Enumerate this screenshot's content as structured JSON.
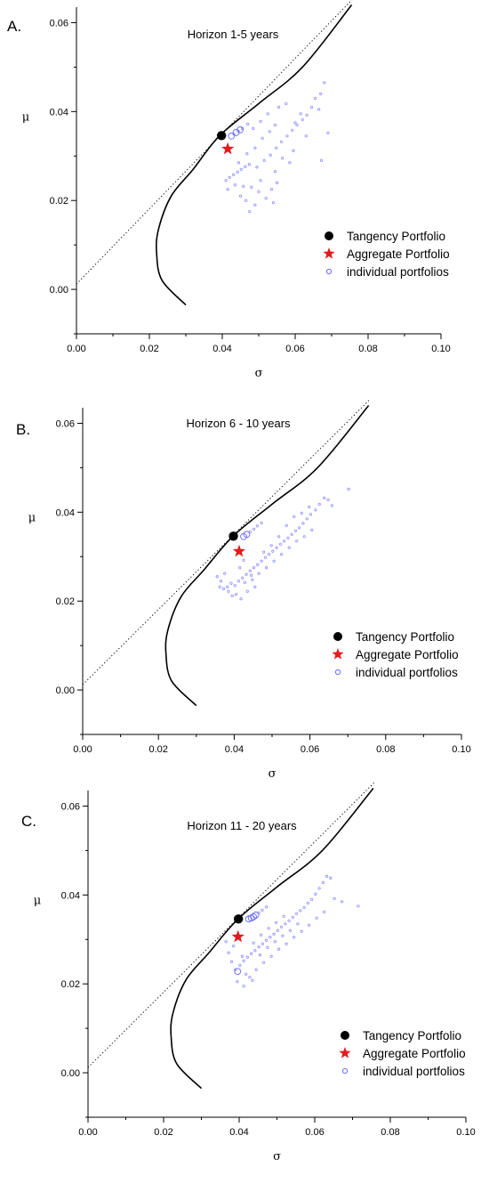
{
  "chart_data": [
    {
      "type": "scatter",
      "panel_label": "A.",
      "title": "Horizon 1-5 years",
      "xlabel": "σ",
      "ylabel": "μ",
      "xlim": [
        0.0,
        0.1
      ],
      "ylim": [
        -0.01,
        0.0635
      ],
      "xticks": [
        "0.00",
        "0.02",
        "0.04",
        "0.06",
        "0.08",
        "0.10"
      ],
      "yticks": [
        "0.00",
        "0.02",
        "0.04",
        "0.06"
      ],
      "legend_position": "right-middle",
      "legend": [
        "Tangency Portfolio",
        "Aggregate Portfolio",
        "individual portfolios"
      ],
      "frontier": {
        "type": "line",
        "style": "solid",
        "points": [
          [
            0.03,
            -0.0035
          ],
          [
            0.0235,
            0.002
          ],
          [
            0.022,
            0.008
          ],
          [
            0.0225,
            0.0135
          ],
          [
            0.026,
            0.021
          ],
          [
            0.032,
            0.027
          ],
          [
            0.0393,
            0.0346
          ],
          [
            0.05,
            0.0418
          ],
          [
            0.062,
            0.05
          ],
          [
            0.0755,
            0.064
          ]
        ]
      },
      "capital_market_line": {
        "type": "line",
        "style": "dotted",
        "points": [
          [
            0.0,
            0.0012
          ],
          [
            0.076,
            0.0655
          ]
        ]
      },
      "tangency_portfolio": {
        "x": 0.0398,
        "y": 0.0346,
        "color": "#000000"
      },
      "aggregate_portfolio": {
        "x": 0.0415,
        "y": 0.0316,
        "color": "#e41a1c"
      },
      "individual_portfolios_color": "#6b6bff",
      "individual_portfolios": [
        {
          "x": 0.0425,
          "y": 0.0345,
          "large": true
        },
        {
          "x": 0.0438,
          "y": 0.0353,
          "large": true
        },
        {
          "x": 0.0449,
          "y": 0.0359,
          "large": true
        },
        {
          "x": 0.0432,
          "y": 0.0349
        },
        {
          "x": 0.0444,
          "y": 0.0356
        },
        {
          "x": 0.0455,
          "y": 0.0362
        },
        {
          "x": 0.041,
          "y": 0.0245
        },
        {
          "x": 0.042,
          "y": 0.0252
        },
        {
          "x": 0.0431,
          "y": 0.0258
        },
        {
          "x": 0.0442,
          "y": 0.0264
        },
        {
          "x": 0.0452,
          "y": 0.027
        },
        {
          "x": 0.0463,
          "y": 0.0276
        },
        {
          "x": 0.0474,
          "y": 0.0281
        },
        {
          "x": 0.045,
          "y": 0.021
        },
        {
          "x": 0.0465,
          "y": 0.02
        },
        {
          "x": 0.048,
          "y": 0.023
        },
        {
          "x": 0.049,
          "y": 0.019
        },
        {
          "x": 0.05,
          "y": 0.022
        },
        {
          "x": 0.0475,
          "y": 0.0175
        },
        {
          "x": 0.052,
          "y": 0.0205
        },
        {
          "x": 0.0535,
          "y": 0.0225
        },
        {
          "x": 0.055,
          "y": 0.024
        },
        {
          "x": 0.0445,
          "y": 0.0285
        },
        {
          "x": 0.0468,
          "y": 0.0305
        },
        {
          "x": 0.049,
          "y": 0.0318
        },
        {
          "x": 0.051,
          "y": 0.034
        },
        {
          "x": 0.053,
          "y": 0.0355
        },
        {
          "x": 0.0545,
          "y": 0.037
        },
        {
          "x": 0.0495,
          "y": 0.0275
        },
        {
          "x": 0.0515,
          "y": 0.029
        },
        {
          "x": 0.0532,
          "y": 0.0302
        },
        {
          "x": 0.0548,
          "y": 0.0318
        },
        {
          "x": 0.0562,
          "y": 0.0332
        },
        {
          "x": 0.0578,
          "y": 0.0345
        },
        {
          "x": 0.0592,
          "y": 0.0358
        },
        {
          "x": 0.0605,
          "y": 0.037
        },
        {
          "x": 0.062,
          "y": 0.0382
        },
        {
          "x": 0.0632,
          "y": 0.0392
        },
        {
          "x": 0.0645,
          "y": 0.041
        },
        {
          "x": 0.0655,
          "y": 0.043
        },
        {
          "x": 0.067,
          "y": 0.044
        },
        {
          "x": 0.068,
          "y": 0.0465
        },
        {
          "x": 0.0665,
          "y": 0.0405
        },
        {
          "x": 0.069,
          "y": 0.0352
        },
        {
          "x": 0.0672,
          "y": 0.029
        },
        {
          "x": 0.0565,
          "y": 0.0295
        },
        {
          "x": 0.0585,
          "y": 0.0285
        },
        {
          "x": 0.06,
          "y": 0.0375
        },
        {
          "x": 0.0615,
          "y": 0.0395
        },
        {
          "x": 0.0525,
          "y": 0.0395
        },
        {
          "x": 0.0555,
          "y": 0.041
        },
        {
          "x": 0.0575,
          "y": 0.0418
        },
        {
          "x": 0.0505,
          "y": 0.0378
        },
        {
          "x": 0.0485,
          "y": 0.0362
        },
        {
          "x": 0.047,
          "y": 0.0372
        },
        {
          "x": 0.0595,
          "y": 0.0312
        },
        {
          "x": 0.063,
          "y": 0.0345
        },
        {
          "x": 0.0458,
          "y": 0.0232
        },
        {
          "x": 0.0505,
          "y": 0.0245
        },
        {
          "x": 0.0545,
          "y": 0.0265
        },
        {
          "x": 0.054,
          "y": 0.0195
        },
        {
          "x": 0.0415,
          "y": 0.0225
        },
        {
          "x": 0.0435,
          "y": 0.0235
        }
      ]
    },
    {
      "type": "scatter",
      "panel_label": "B.",
      "title": "Horizon 6 - 10 years",
      "xlabel": "σ",
      "ylabel": "μ",
      "xlim": [
        0.0,
        0.1
      ],
      "ylim": [
        -0.01,
        0.0635
      ],
      "xticks": [
        "0.00",
        "0.02",
        "0.04",
        "0.06",
        "0.08",
        "0.10"
      ],
      "yticks": [
        "0.00",
        "0.02",
        "0.04",
        "0.06"
      ],
      "legend_position": "right-middle",
      "legend": [
        "Tangency Portfolio",
        "Aggregate Portfolio",
        "individual portfolios"
      ],
      "frontier": {
        "type": "line",
        "style": "solid",
        "points": [
          [
            0.03,
            -0.0035
          ],
          [
            0.0235,
            0.002
          ],
          [
            0.022,
            0.008
          ],
          [
            0.0225,
            0.0135
          ],
          [
            0.026,
            0.021
          ],
          [
            0.032,
            0.027
          ],
          [
            0.0397,
            0.0346
          ],
          [
            0.05,
            0.0418
          ],
          [
            0.062,
            0.05
          ],
          [
            0.0755,
            0.064
          ]
        ]
      },
      "capital_market_line": {
        "type": "line",
        "style": "dotted",
        "points": [
          [
            0.0,
            0.0012
          ],
          [
            0.076,
            0.0655
          ]
        ]
      },
      "tangency_portfolio": {
        "x": 0.0398,
        "y": 0.0346,
        "color": "#000000"
      },
      "aggregate_portfolio": {
        "x": 0.0413,
        "y": 0.0312,
        "color": "#e41a1c"
      },
      "individual_portfolios_color": "#6b6bff",
      "individual_portfolios": [
        {
          "x": 0.0425,
          "y": 0.0345,
          "large": true
        },
        {
          "x": 0.0433,
          "y": 0.035,
          "large": true
        },
        {
          "x": 0.0442,
          "y": 0.0356
        },
        {
          "x": 0.0452,
          "y": 0.0362
        },
        {
          "x": 0.0461,
          "y": 0.0369
        },
        {
          "x": 0.0472,
          "y": 0.0376
        },
        {
          "x": 0.0355,
          "y": 0.0255
        },
        {
          "x": 0.0362,
          "y": 0.0232
        },
        {
          "x": 0.0372,
          "y": 0.0228
        },
        {
          "x": 0.0382,
          "y": 0.0232
        },
        {
          "x": 0.0392,
          "y": 0.024
        },
        {
          "x": 0.0402,
          "y": 0.0235
        },
        {
          "x": 0.0412,
          "y": 0.0245
        },
        {
          "x": 0.0422,
          "y": 0.0252
        },
        {
          "x": 0.0432,
          "y": 0.026
        },
        {
          "x": 0.0442,
          "y": 0.0268
        },
        {
          "x": 0.0452,
          "y": 0.0275
        },
        {
          "x": 0.0462,
          "y": 0.0282
        },
        {
          "x": 0.0472,
          "y": 0.029
        },
        {
          "x": 0.0482,
          "y": 0.0298
        },
        {
          "x": 0.0492,
          "y": 0.0305
        },
        {
          "x": 0.0502,
          "y": 0.0312
        },
        {
          "x": 0.0512,
          "y": 0.032
        },
        {
          "x": 0.0522,
          "y": 0.0328
        },
        {
          "x": 0.0532,
          "y": 0.0335
        },
        {
          "x": 0.0542,
          "y": 0.0342
        },
        {
          "x": 0.0552,
          "y": 0.035
        },
        {
          "x": 0.0562,
          "y": 0.0358
        },
        {
          "x": 0.0572,
          "y": 0.0365
        },
        {
          "x": 0.0582,
          "y": 0.0375
        },
        {
          "x": 0.0592,
          "y": 0.0385
        },
        {
          "x": 0.0602,
          "y": 0.0395
        },
        {
          "x": 0.0615,
          "y": 0.0405
        },
        {
          "x": 0.0625,
          "y": 0.0418
        },
        {
          "x": 0.0638,
          "y": 0.0432
        },
        {
          "x": 0.0648,
          "y": 0.0428
        },
        {
          "x": 0.0658,
          "y": 0.0415
        },
        {
          "x": 0.0702,
          "y": 0.0452
        },
        {
          "x": 0.0415,
          "y": 0.0275
        },
        {
          "x": 0.0425,
          "y": 0.0292
        },
        {
          "x": 0.0405,
          "y": 0.0215
        },
        {
          "x": 0.0418,
          "y": 0.0205
        },
        {
          "x": 0.0435,
          "y": 0.0222
        },
        {
          "x": 0.0448,
          "y": 0.0248
        },
        {
          "x": 0.0465,
          "y": 0.0262
        },
        {
          "x": 0.0485,
          "y": 0.0275
        },
        {
          "x": 0.0505,
          "y": 0.029
        },
        {
          "x": 0.0525,
          "y": 0.0305
        },
        {
          "x": 0.0545,
          "y": 0.032
        },
        {
          "x": 0.0565,
          "y": 0.0335
        },
        {
          "x": 0.0585,
          "y": 0.0345
        },
        {
          "x": 0.0605,
          "y": 0.036
        },
        {
          "x": 0.0365,
          "y": 0.0245
        },
        {
          "x": 0.0375,
          "y": 0.0262
        },
        {
          "x": 0.0385,
          "y": 0.0222
        },
        {
          "x": 0.0395,
          "y": 0.0212
        },
        {
          "x": 0.0455,
          "y": 0.0232
        },
        {
          "x": 0.0478,
          "y": 0.031
        },
        {
          "x": 0.0498,
          "y": 0.0325
        },
        {
          "x": 0.0518,
          "y": 0.0345
        },
        {
          "x": 0.0538,
          "y": 0.037
        },
        {
          "x": 0.0558,
          "y": 0.039
        },
        {
          "x": 0.0578,
          "y": 0.0398
        },
        {
          "x": 0.0598,
          "y": 0.0412
        },
        {
          "x": 0.0445,
          "y": 0.0258
        },
        {
          "x": 0.0428,
          "y": 0.0242
        }
      ]
    },
    {
      "type": "scatter",
      "panel_label": "C.",
      "title": "Horizon 11 - 20 years",
      "xlabel": "σ",
      "ylabel": "μ",
      "xlim": [
        0.0,
        0.1
      ],
      "ylim": [
        -0.01,
        0.0635
      ],
      "xticks": [
        "0.00",
        "0.02",
        "0.04",
        "0.06",
        "0.08",
        "0.10"
      ],
      "yticks": [
        "0.00",
        "0.02",
        "0.04",
        "0.06"
      ],
      "legend_position": "right-middle",
      "legend": [
        "Tangency Portfolio",
        "Aggregate Portfolio",
        "individual portfolios"
      ],
      "frontier": {
        "type": "line",
        "style": "solid",
        "points": [
          [
            0.03,
            -0.0035
          ],
          [
            0.0235,
            0.002
          ],
          [
            0.022,
            0.008
          ],
          [
            0.0225,
            0.0135
          ],
          [
            0.026,
            0.021
          ],
          [
            0.032,
            0.027
          ],
          [
            0.0397,
            0.0346
          ],
          [
            0.05,
            0.0418
          ],
          [
            0.062,
            0.05
          ],
          [
            0.0755,
            0.064
          ]
        ]
      },
      "capital_market_line": {
        "type": "line",
        "style": "dotted",
        "points": [
          [
            0.0,
            0.0012
          ],
          [
            0.076,
            0.0655
          ]
        ]
      },
      "tangency_portfolio": {
        "x": 0.0398,
        "y": 0.0346,
        "color": "#000000"
      },
      "aggregate_portfolio": {
        "x": 0.0397,
        "y": 0.0306,
        "color": "#e41a1c"
      },
      "individual_portfolios_color": "#6b6bff",
      "individual_portfolios": [
        {
          "x": 0.0425,
          "y": 0.0346,
          "large": true
        },
        {
          "x": 0.0432,
          "y": 0.0348,
          "large": true
        },
        {
          "x": 0.0438,
          "y": 0.0351,
          "large": true
        },
        {
          "x": 0.0444,
          "y": 0.0355,
          "large": true
        },
        {
          "x": 0.0452,
          "y": 0.036
        },
        {
          "x": 0.0461,
          "y": 0.0366
        },
        {
          "x": 0.0472,
          "y": 0.0373
        },
        {
          "x": 0.0396,
          "y": 0.0228,
          "large": true
        },
        {
          "x": 0.039,
          "y": 0.0232
        },
        {
          "x": 0.038,
          "y": 0.025
        },
        {
          "x": 0.0372,
          "y": 0.027
        },
        {
          "x": 0.0365,
          "y": 0.0295
        },
        {
          "x": 0.0402,
          "y": 0.0242
        },
        {
          "x": 0.0412,
          "y": 0.0252
        },
        {
          "x": 0.0422,
          "y": 0.026
        },
        {
          "x": 0.0432,
          "y": 0.0268
        },
        {
          "x": 0.0442,
          "y": 0.0275
        },
        {
          "x": 0.0452,
          "y": 0.0283
        },
        {
          "x": 0.0462,
          "y": 0.029
        },
        {
          "x": 0.0472,
          "y": 0.0298
        },
        {
          "x": 0.0482,
          "y": 0.0305
        },
        {
          "x": 0.0492,
          "y": 0.0312
        },
        {
          "x": 0.0502,
          "y": 0.032
        },
        {
          "x": 0.0512,
          "y": 0.0328
        },
        {
          "x": 0.0522,
          "y": 0.0335
        },
        {
          "x": 0.0532,
          "y": 0.0342
        },
        {
          "x": 0.0542,
          "y": 0.035
        },
        {
          "x": 0.0552,
          "y": 0.0358
        },
        {
          "x": 0.0562,
          "y": 0.0365
        },
        {
          "x": 0.0572,
          "y": 0.0372
        },
        {
          "x": 0.0582,
          "y": 0.0382
        },
        {
          "x": 0.0592,
          "y": 0.039
        },
        {
          "x": 0.0602,
          "y": 0.0402
        },
        {
          "x": 0.0612,
          "y": 0.0415
        },
        {
          "x": 0.0622,
          "y": 0.0428
        },
        {
          "x": 0.0632,
          "y": 0.0442
        },
        {
          "x": 0.0642,
          "y": 0.0438
        },
        {
          "x": 0.0652,
          "y": 0.0392
        },
        {
          "x": 0.0672,
          "y": 0.0385
        },
        {
          "x": 0.0715,
          "y": 0.0375
        },
        {
          "x": 0.0418,
          "y": 0.0222
        },
        {
          "x": 0.0428,
          "y": 0.0215
        },
        {
          "x": 0.0445,
          "y": 0.0232
        },
        {
          "x": 0.0465,
          "y": 0.0248
        },
        {
          "x": 0.0485,
          "y": 0.0262
        },
        {
          "x": 0.0505,
          "y": 0.0278
        },
        {
          "x": 0.0525,
          "y": 0.029
        },
        {
          "x": 0.0545,
          "y": 0.0305
        },
        {
          "x": 0.0565,
          "y": 0.0318
        },
        {
          "x": 0.0585,
          "y": 0.0332
        },
        {
          "x": 0.0605,
          "y": 0.0348
        },
        {
          "x": 0.0625,
          "y": 0.0362
        },
        {
          "x": 0.0455,
          "y": 0.0265
        },
        {
          "x": 0.0475,
          "y": 0.0282
        },
        {
          "x": 0.0495,
          "y": 0.0295
        },
        {
          "x": 0.0515,
          "y": 0.0308
        },
        {
          "x": 0.0535,
          "y": 0.032
        },
        {
          "x": 0.0555,
          "y": 0.0335
        },
        {
          "x": 0.0408,
          "y": 0.0262
        },
        {
          "x": 0.0438,
          "y": 0.0292
        },
        {
          "x": 0.0458,
          "y": 0.031
        },
        {
          "x": 0.0478,
          "y": 0.0325
        },
        {
          "x": 0.0498,
          "y": 0.0338
        },
        {
          "x": 0.0518,
          "y": 0.0352
        },
        {
          "x": 0.0385,
          "y": 0.0285
        },
        {
          "x": 0.0395,
          "y": 0.0205
        },
        {
          "x": 0.0412,
          "y": 0.0195
        },
        {
          "x": 0.0435,
          "y": 0.0208
        }
      ]
    }
  ]
}
